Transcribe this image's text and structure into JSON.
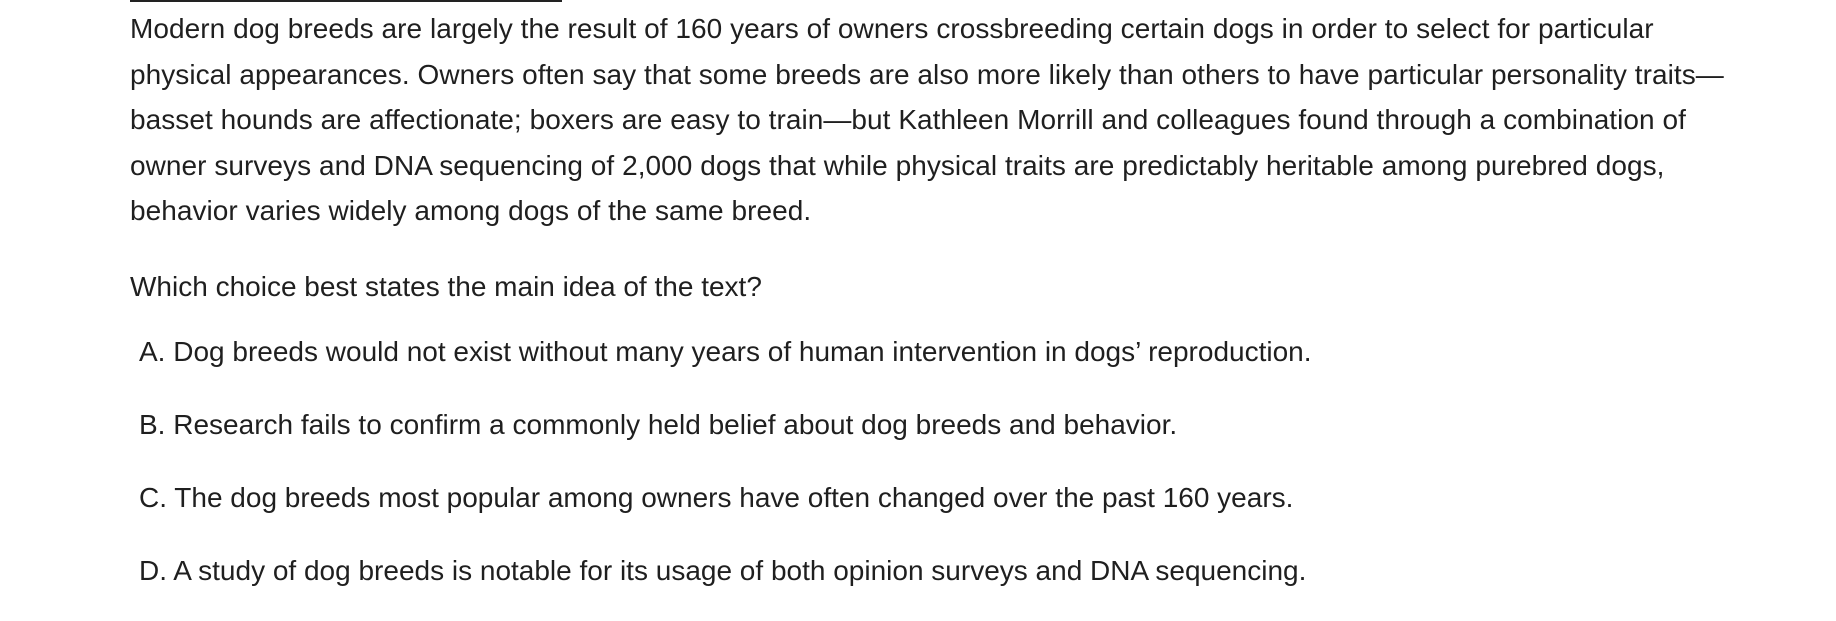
{
  "passage": "Modern dog breeds are largely the result of 160 years of owners crossbreeding certain dogs in order to select for particular physical appearances. Owners often say that some breeds are also more likely than others to have particular personality traits—basset hounds are affectionate; boxers are easy to train—but Kathleen Morrill and colleagues found through a combination of owner surveys and DNA sequencing of 2,000 dogs that while physical traits are predictably heritable among purebred dogs, behavior varies widely among dogs of the same breed.",
  "question": "Which choice best states the main idea of the text?",
  "choices": [
    {
      "letter": "A.",
      "text": "Dog breeds would not exist without many years of human intervention in dogs’ reproduction."
    },
    {
      "letter": "B.",
      "text": "Research fails to confirm a commonly held belief about dog breeds and behavior."
    },
    {
      "letter": "C.",
      "text": "The dog breeds most popular among owners have often changed over the past 160 years."
    },
    {
      "letter": "D.",
      "text": "A study of dog breeds is notable for its usage of both opinion surveys and DNA sequencing."
    }
  ]
}
